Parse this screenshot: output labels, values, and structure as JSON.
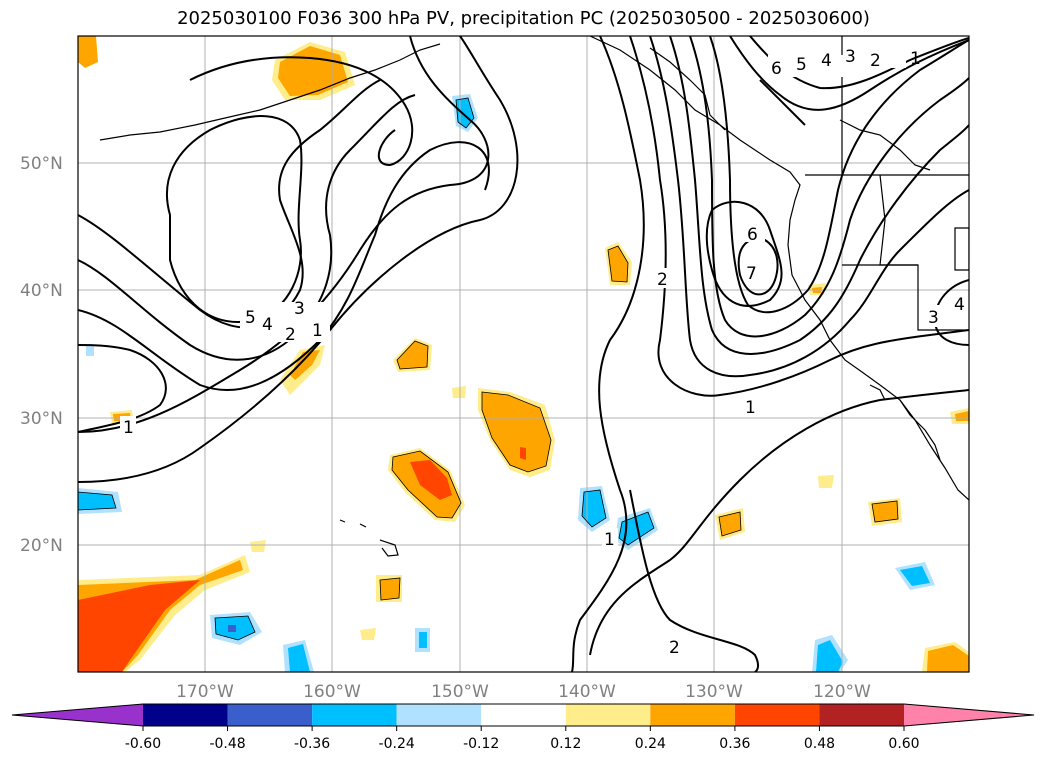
{
  "title": "2025030100 F036 300 hPa PV, precipitation PC (2025030500 - 2025030600)",
  "lat_labels": [
    "50°N",
    "40°N",
    "30°N",
    "20°N"
  ],
  "lon_labels": [
    "170°W",
    "160°W",
    "150°W",
    "140°W",
    "130°W",
    "120°W"
  ],
  "colorbar": {
    "ticks": [
      "-0.60",
      "-0.48",
      "-0.36",
      "-0.24",
      "-0.12",
      "0.12",
      "0.24",
      "0.36",
      "0.48",
      "0.60"
    ],
    "colors": [
      "#9932cc",
      "#00008b",
      "#3a5fcd",
      "#00bfff",
      "#b0e2ff",
      "#ffffff",
      "#ffec8b",
      "#ffa500",
      "#ff4500",
      "#b22222",
      "#ff82ab"
    ]
  },
  "contour_labels": [
    "1",
    "2",
    "3",
    "4",
    "5",
    "6",
    "7"
  ]
}
